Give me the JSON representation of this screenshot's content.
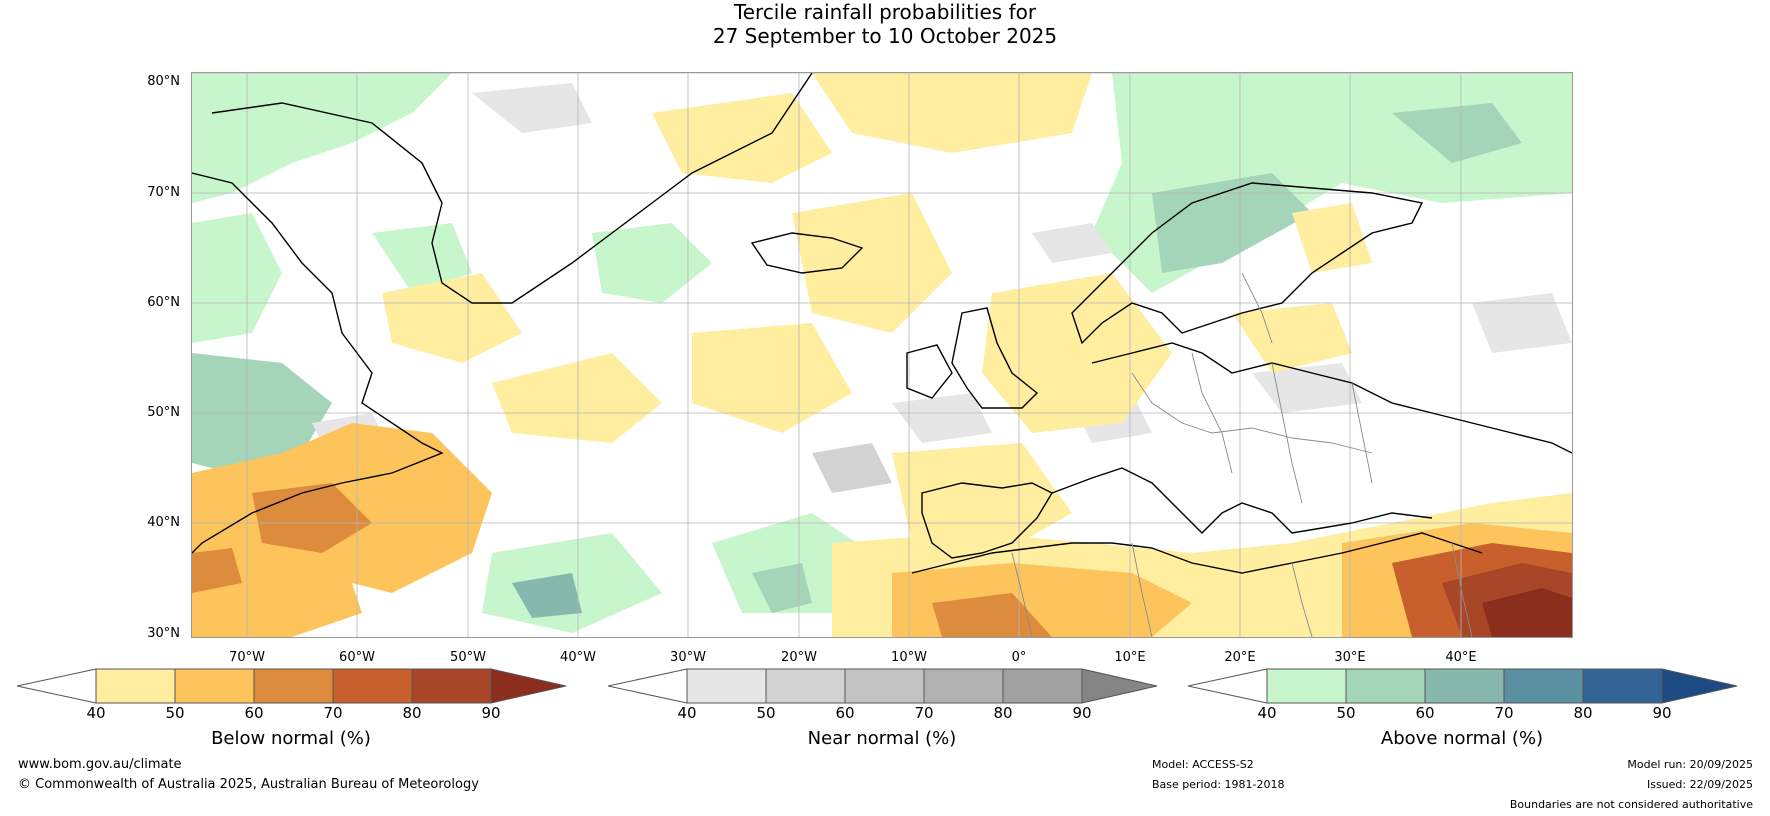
{
  "title": {
    "line1": "Tercile rainfall probabilities for",
    "line2": "27 September to 10 October 2025"
  },
  "map": {
    "projection": "equirectangular",
    "lon_range": [
      -80,
      45
    ],
    "lat_range": [
      30,
      81
    ],
    "lat_labels": [
      "80°N",
      "70°N",
      "60°N",
      "50°N",
      "40°N",
      "30°N"
    ],
    "lon_labels": [
      "70°W",
      "60°W",
      "50°W",
      "40°W",
      "30°W",
      "20°W",
      "10°W",
      "0°",
      "10°E",
      "20°E",
      "30°E",
      "40°E"
    ],
    "regions": [
      "Greenland",
      "North America",
      "North Atlantic",
      "Iceland",
      "British Isles",
      "Scandinavia",
      "Europe",
      "North Africa",
      "Middle East"
    ]
  },
  "colorbars": [
    {
      "id": "below",
      "title": "Below normal (%)",
      "ticks": [
        "40",
        "50",
        "60",
        "70",
        "80",
        "90"
      ],
      "colors": [
        "#ffffff",
        "#ffeda0",
        "#fec45c",
        "#dd8b3c",
        "#c7602c",
        "#a84628",
        "#8b2e1e"
      ]
    },
    {
      "id": "near",
      "title": "Near normal (%)",
      "ticks": [
        "40",
        "50",
        "60",
        "70",
        "80",
        "90"
      ],
      "colors": [
        "#ffffff",
        "#e6e6e6",
        "#d2d2d2",
        "#c3c3c3",
        "#b1b1b1",
        "#a1a1a1",
        "#858585"
      ]
    },
    {
      "id": "above",
      "title": "Above normal (%)",
      "ticks": [
        "40",
        "50",
        "60",
        "70",
        "80",
        "90"
      ],
      "colors": [
        "#ffffff",
        "#c7f5cc",
        "#a5d5b8",
        "#86b8ad",
        "#5b90a2",
        "#346495",
        "#1b4b82"
      ]
    }
  ],
  "footer": {
    "website": "www.bom.gov.au/climate",
    "copyright": "© Commonwealth of Australia 2025, Australian Bureau of Meteorology",
    "model": "Model: ACCESS-S2",
    "base_period": "Base period: 1981-2018",
    "model_run": "Model run: 20/09/2025",
    "issued": "Issued: 22/09/2025",
    "disclaimer": "Boundaries are not considered authoritative"
  }
}
